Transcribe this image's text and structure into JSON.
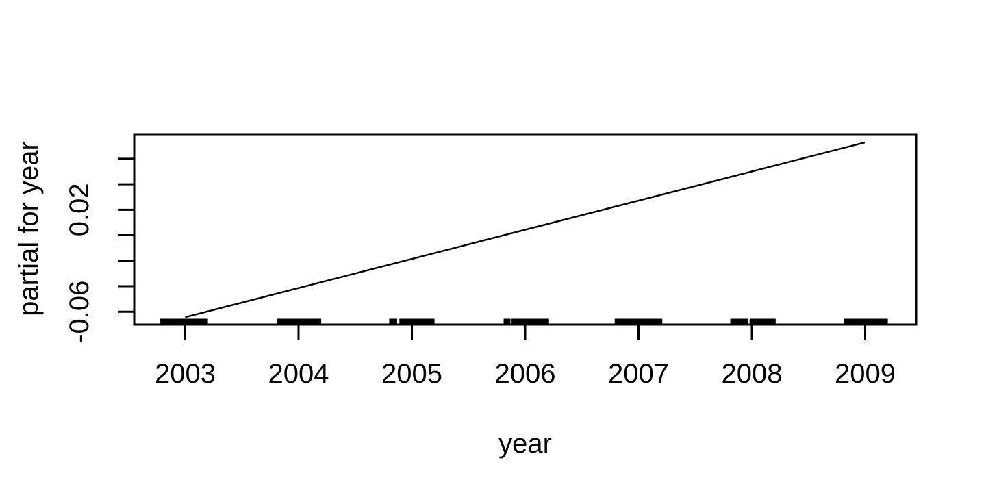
{
  "chart_data": {
    "type": "line",
    "title": "",
    "xlabel": "year",
    "ylabel": "partial for year",
    "xlim": [
      2002.55,
      2009.45
    ],
    "ylim": [
      -0.0701,
      0.0793
    ],
    "x_ticks": [
      2003,
      2004,
      2005,
      2006,
      2007,
      2008,
      2009
    ],
    "x_tick_labels": [
      "2003",
      "2004",
      "2005",
      "2006",
      "2007",
      "2008",
      "2009"
    ],
    "y_ticks": [
      0.06,
      0.04,
      0.02,
      0.0,
      -0.02,
      -0.04,
      -0.06
    ],
    "y_tick_labels": [
      "",
      "",
      "0.02",
      "",
      "",
      "",
      "-0.06"
    ],
    "grid": false,
    "legend": false,
    "series": [
      {
        "name": "partial-effect-line",
        "type": "line",
        "color": "#000000",
        "x": [
          2003,
          2009
        ],
        "y": [
          -0.0643,
          0.0729
        ]
      }
    ],
    "rug_segments_x": [
      [
        2002.78,
        2003.2
      ],
      [
        2003.81,
        2004.2
      ],
      [
        2004.8,
        2004.87
      ],
      [
        2004.89,
        2005.2
      ],
      [
        2005.81,
        2005.87
      ],
      [
        2005.88,
        2006.21
      ],
      [
        2006.79,
        2007.21
      ],
      [
        2007.81,
        2007.97
      ],
      [
        2007.98,
        2008.21
      ],
      [
        2008.81,
        2009.2
      ]
    ],
    "colors": {
      "foreground": "#000000",
      "background": "#ffffff"
    }
  }
}
